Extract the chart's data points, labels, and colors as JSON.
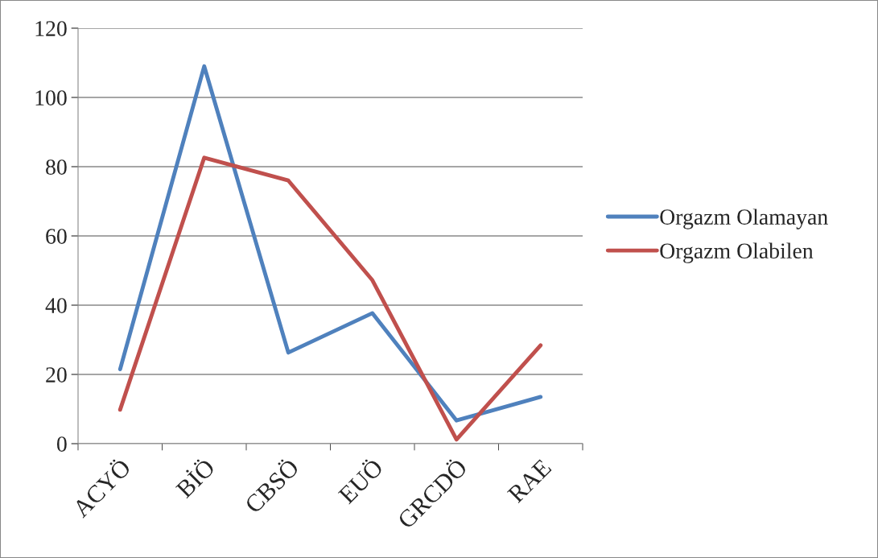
{
  "chart_data": {
    "type": "line",
    "categories": [
      "ACYÖ",
      "BİÖ",
      "CBSÖ",
      "EUÖ",
      "GRCDÖ",
      "RAE"
    ],
    "series": [
      {
        "name": "Orgazm Olamayan",
        "color": "#4f81bd",
        "values": [
          21.5,
          109,
          26.3,
          37.7,
          6.7,
          13.5
        ]
      },
      {
        "name": "Orgazm Olabilen",
        "color": "#c0504d",
        "values": [
          9.8,
          82.6,
          76,
          47.2,
          1.2,
          28.4
        ]
      }
    ],
    "ylim": [
      0,
      120
    ],
    "yticks": [
      0,
      20,
      40,
      60,
      80,
      100,
      120
    ],
    "grid": "y",
    "legend": "right",
    "marker": "none",
    "line_style": "solid"
  }
}
